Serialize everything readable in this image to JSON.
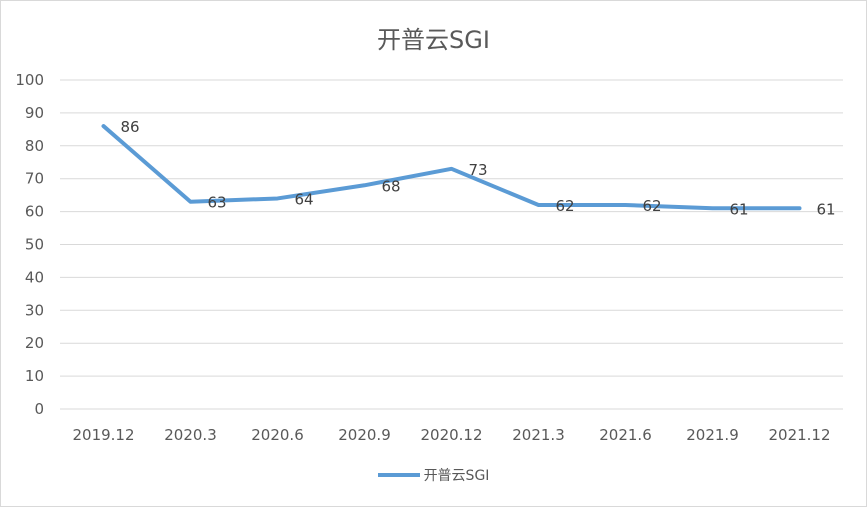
{
  "chart_data": {
    "type": "line",
    "title": "开普云SGI",
    "categories": [
      "2019.12",
      "2020.3",
      "2020.6",
      "2020.9",
      "2020.12",
      "2021.3",
      "2021.6",
      "2021.9",
      "2021.12"
    ],
    "series": [
      {
        "name": "开普云SGI",
        "values": [
          86,
          63,
          64,
          68,
          73,
          62,
          62,
          61,
          61
        ],
        "color": "#5b9bd5"
      }
    ],
    "xlabel": "",
    "ylabel": "",
    "ylim": [
      0,
      100
    ],
    "yticks": [
      "0",
      "10",
      "20",
      "30",
      "40",
      "50",
      "60",
      "70",
      "80",
      "90",
      "100"
    ],
    "grid": true,
    "legend_position": "bottom",
    "data_labels": true
  }
}
